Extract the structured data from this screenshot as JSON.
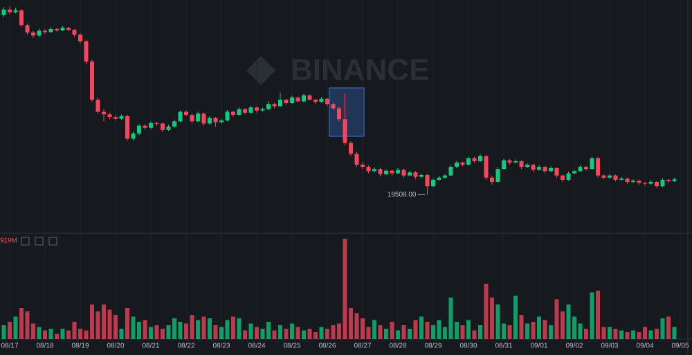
{
  "chart_data": {
    "type": "candlestick",
    "watermark": "BINANCE",
    "volume_label": "919M",
    "up_color": "#0ecb81",
    "down_color": "#f6465d",
    "ylim": [
      18650,
      24000
    ],
    "volume_ylim": [
      0,
      30000
    ],
    "low_marker": {
      "value": 19508,
      "label": "19508.00",
      "index": 72
    },
    "categories": [
      null,
      "08/17",
      null,
      null,
      null,
      null,
      null,
      "08/18",
      null,
      null,
      null,
      null,
      null,
      "08/19",
      null,
      null,
      null,
      null,
      null,
      "08/20",
      null,
      null,
      null,
      null,
      null,
      "08/21",
      null,
      null,
      null,
      null,
      null,
      "08/22",
      null,
      null,
      null,
      null,
      null,
      "08/23",
      null,
      null,
      null,
      null,
      null,
      "08/24",
      null,
      null,
      null,
      null,
      null,
      "08/25",
      null,
      null,
      null,
      null,
      null,
      "08/26",
      null,
      null,
      null,
      null,
      null,
      "08/27",
      null,
      null,
      null,
      null,
      null,
      "08/28",
      null,
      null,
      null,
      null,
      null,
      "08/29",
      null,
      null,
      null,
      null,
      null,
      "08/30",
      null,
      null,
      null,
      null,
      null,
      "08/31",
      null,
      null,
      null,
      null,
      null,
      "09/01",
      null,
      null,
      null,
      null,
      null,
      "09/02",
      null,
      null,
      null,
      null,
      null,
      "09/03",
      null,
      null,
      null,
      null,
      null,
      "09/04",
      null,
      null,
      null,
      null,
      null,
      "09/05"
    ],
    "ohlcv": [
      [
        23650,
        23840,
        23600,
        23780,
        4000
      ],
      [
        23780,
        23850,
        23680,
        23720,
        5000
      ],
      [
        23720,
        23820,
        23690,
        23760,
        6500
      ],
      [
        23760,
        23790,
        23380,
        23420,
        9000
      ],
      [
        23420,
        23460,
        23200,
        23250,
        8000
      ],
      [
        23250,
        23290,
        23120,
        23180,
        4500
      ],
      [
        23180,
        23340,
        23150,
        23290,
        3500
      ],
      [
        23290,
        23320,
        23220,
        23260,
        2500
      ],
      [
        23260,
        23380,
        23240,
        23330,
        3000
      ],
      [
        23330,
        23360,
        23270,
        23300,
        1500
      ],
      [
        23300,
        23400,
        23280,
        23360,
        3000
      ],
      [
        23360,
        23390,
        23280,
        23310,
        2500
      ],
      [
        23310,
        23330,
        23150,
        23200,
        5000
      ],
      [
        23200,
        23230,
        23000,
        23050,
        3000
      ],
      [
        23050,
        23080,
        22520,
        22580,
        2500
      ],
      [
        22580,
        22620,
        21650,
        21700,
        10000
      ],
      [
        21700,
        21760,
        21380,
        21420,
        8000
      ],
      [
        21420,
        21480,
        21200,
        21360,
        10000
      ],
      [
        21360,
        21400,
        21250,
        21300,
        8500
      ],
      [
        21300,
        21340,
        21220,
        21260,
        7000
      ],
      [
        21260,
        21360,
        21230,
        21320,
        3000
      ],
      [
        21320,
        21350,
        20750,
        20800,
        9000
      ],
      [
        20800,
        20960,
        20760,
        20920,
        6500
      ],
      [
        20920,
        21140,
        20880,
        21100,
        5000
      ],
      [
        21100,
        21130,
        21000,
        21050,
        5500
      ],
      [
        21050,
        21200,
        21020,
        21160,
        3500
      ],
      [
        21160,
        21190,
        21100,
        21150,
        4000
      ],
      [
        21150,
        21170,
        20950,
        21000,
        3000
      ],
      [
        21000,
        21120,
        20980,
        21080,
        4000
      ],
      [
        21080,
        21240,
        21050,
        21200,
        6000
      ],
      [
        21200,
        21450,
        21180,
        21420,
        5000
      ],
      [
        21420,
        21450,
        21320,
        21350,
        4500
      ],
      [
        21350,
        21380,
        21150,
        21200,
        7000
      ],
      [
        21200,
        21420,
        21180,
        21380,
        5500
      ],
      [
        21380,
        21400,
        21100,
        21150,
        6500
      ],
      [
        21150,
        21320,
        21120,
        21280,
        6000
      ],
      [
        21280,
        21300,
        21080,
        21180,
        4000
      ],
      [
        21180,
        21260,
        21150,
        21220,
        3500
      ],
      [
        21220,
        21460,
        21200,
        21420,
        5500
      ],
      [
        21420,
        21440,
        21300,
        21350,
        6500
      ],
      [
        21350,
        21520,
        21330,
        21480,
        6000
      ],
      [
        21480,
        21500,
        21360,
        21400,
        2500
      ],
      [
        21400,
        21560,
        21380,
        21520,
        4500
      ],
      [
        21520,
        21540,
        21400,
        21450,
        3500
      ],
      [
        21450,
        21520,
        21420,
        21480,
        3000
      ],
      [
        21480,
        21660,
        21450,
        21600,
        5000
      ],
      [
        21600,
        21630,
        21500,
        21550,
        2500
      ],
      [
        21550,
        21860,
        21530,
        21700,
        4000
      ],
      [
        21700,
        21720,
        21580,
        21620,
        3000
      ],
      [
        21620,
        21790,
        21600,
        21750,
        4500
      ],
      [
        21750,
        21770,
        21630,
        21660,
        3500
      ],
      [
        21660,
        21840,
        21640,
        21800,
        2500
      ],
      [
        21800,
        21820,
        21680,
        21700,
        3000
      ],
      [
        21700,
        21720,
        21600,
        21650,
        2000
      ],
      [
        21650,
        21760,
        21630,
        21720,
        3500
      ],
      [
        21720,
        21740,
        21560,
        21600,
        3000
      ],
      [
        21600,
        21640,
        21460,
        21500,
        4000
      ],
      [
        21500,
        21540,
        21200,
        21250,
        4500
      ],
      [
        21250,
        21850,
        20650,
        20700,
        29000
      ],
      [
        20700,
        20740,
        20400,
        20450,
        9000
      ],
      [
        20450,
        20500,
        20150,
        20200,
        7500
      ],
      [
        20200,
        20260,
        20100,
        20150,
        6000
      ],
      [
        20150,
        20180,
        20000,
        20050,
        3500
      ],
      [
        20050,
        20140,
        20020,
        20100,
        5500
      ],
      [
        20100,
        20130,
        19930,
        19980,
        4000
      ],
      [
        19980,
        20100,
        19960,
        20060,
        3000
      ],
      [
        20060,
        20090,
        19950,
        20000,
        5000
      ],
      [
        20000,
        20120,
        19980,
        20080,
        2500
      ],
      [
        20080,
        20110,
        19900,
        19950,
        4000
      ],
      [
        19950,
        20060,
        19930,
        20020,
        3000
      ],
      [
        20020,
        20050,
        19870,
        19920,
        5500
      ],
      [
        19920,
        20000,
        19890,
        19960,
        6500
      ],
      [
        19960,
        19990,
        19508,
        19700,
        5000
      ],
      [
        19700,
        19880,
        19680,
        19850,
        4000
      ],
      [
        19850,
        19940,
        19830,
        19900,
        5500
      ],
      [
        19900,
        19980,
        19870,
        19950,
        3500
      ],
      [
        19950,
        20190,
        19930,
        20150,
        12000
      ],
      [
        20150,
        20290,
        20120,
        20250,
        5000
      ],
      [
        20250,
        20270,
        20160,
        20200,
        4000
      ],
      [
        20200,
        20390,
        20180,
        20350,
        5500
      ],
      [
        20350,
        20380,
        20240,
        20280,
        2500
      ],
      [
        20280,
        20440,
        20260,
        20400,
        4000
      ],
      [
        20400,
        20420,
        19850,
        19900,
        16000
      ],
      [
        19900,
        19940,
        19740,
        19800,
        12000
      ],
      [
        19800,
        20140,
        19780,
        20100,
        10000
      ],
      [
        20100,
        20340,
        20080,
        20300,
        4500
      ],
      [
        20300,
        20330,
        20200,
        20250,
        4000
      ],
      [
        20250,
        20320,
        20230,
        20280,
        12500
      ],
      [
        20280,
        20300,
        20100,
        20150,
        7000
      ],
      [
        20150,
        20240,
        20120,
        20200,
        4500
      ],
      [
        20200,
        20220,
        20030,
        20080,
        5000
      ],
      [
        20080,
        20190,
        20060,
        20150,
        6500
      ],
      [
        20150,
        20170,
        20000,
        20050,
        5500
      ],
      [
        20050,
        20160,
        20030,
        20120,
        4000
      ],
      [
        20120,
        20140,
        19900,
        19950,
        11500
      ],
      [
        19950,
        19980,
        19800,
        19850,
        8000
      ],
      [
        19850,
        20040,
        19830,
        20000,
        10000
      ],
      [
        20000,
        20080,
        19980,
        20050,
        6500
      ],
      [
        20050,
        20190,
        20030,
        20150,
        4500
      ],
      [
        20150,
        20170,
        20060,
        20100,
        3000
      ],
      [
        20100,
        20390,
        20080,
        20350,
        13500
      ],
      [
        20350,
        20380,
        19900,
        19950,
        14000
      ],
      [
        19950,
        19980,
        19860,
        19900,
        3500
      ],
      [
        19900,
        19990,
        19880,
        19950,
        3500
      ],
      [
        19950,
        19970,
        19820,
        19850,
        3000
      ],
      [
        19850,
        19920,
        19830,
        19880,
        2500
      ],
      [
        19880,
        19900,
        19760,
        19800,
        2000
      ],
      [
        19800,
        19860,
        19780,
        19830,
        2500
      ],
      [
        19830,
        19850,
        19740,
        19780,
        2000
      ],
      [
        19780,
        19800,
        19720,
        19760,
        3500
      ],
      [
        19760,
        19840,
        19740,
        19800,
        2500
      ],
      [
        19800,
        19820,
        19660,
        19700,
        3000
      ],
      [
        19700,
        19890,
        19680,
        19850,
        6000
      ],
      [
        19850,
        19870,
        19780,
        19820,
        6500
      ],
      [
        19820,
        19900,
        19800,
        19860,
        3500
      ],
      null
    ]
  }
}
